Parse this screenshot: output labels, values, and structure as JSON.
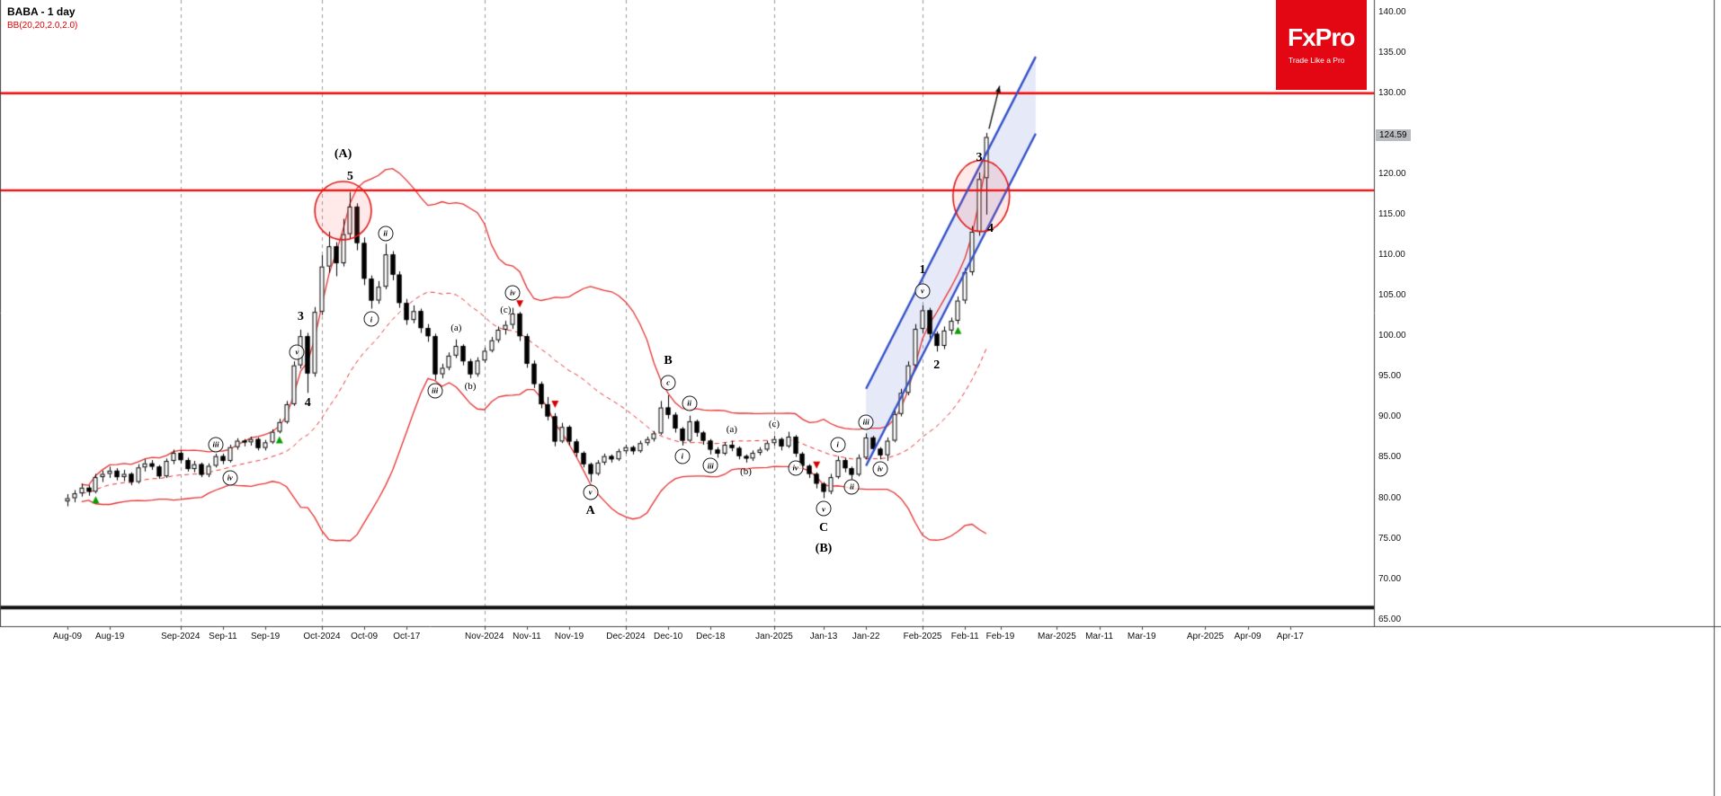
{
  "header": {
    "symbol_title": "BABA - 1 day",
    "indicator_label": "BB(20,20,2.0,2.0)"
  },
  "logo": {
    "brand": "FxPro",
    "tagline": "Trade Like a Pro",
    "bg_color": "#e30613"
  },
  "price_axis": {
    "current_price_label": "124.59",
    "ticks": [
      {
        "label": "140.00",
        "value": 140
      },
      {
        "label": "135.00",
        "value": 135
      },
      {
        "label": "130.00",
        "value": 130
      },
      {
        "label": "125.00",
        "value": 125
      },
      {
        "label": "120.00",
        "value": 120
      },
      {
        "label": "115.00",
        "value": 115
      },
      {
        "label": "110.00",
        "value": 110
      },
      {
        "label": "105.00",
        "value": 105
      },
      {
        "label": "100.00",
        "value": 100
      },
      {
        "label": "95.00",
        "value": 95
      },
      {
        "label": "90.00",
        "value": 90
      },
      {
        "label": "85.00",
        "value": 85
      },
      {
        "label": "80.00",
        "value": 80
      },
      {
        "label": "75.00",
        "value": 75
      },
      {
        "label": "70.00",
        "value": 70
      },
      {
        "label": "65.00",
        "value": 65
      }
    ]
  },
  "chart_data": {
    "type": "candlestick",
    "symbol": "BABA",
    "timeframe": "1 day",
    "title": "BABA - 1 day",
    "indicator": {
      "name": "Bollinger Bands",
      "label": "BB(20,20,2.0,2.0)",
      "period": 20,
      "deviation": 2.0
    },
    "price_range": [
      64.2,
      141.5
    ],
    "current_price": 124.59,
    "x_labels": [
      {
        "label": "Aug-09",
        "day": 0
      },
      {
        "label": "Aug-19",
        "day": 6
      },
      {
        "label": "Sep-2024",
        "day": 16
      },
      {
        "label": "Sep-11",
        "day": 22
      },
      {
        "label": "Sep-19",
        "day": 28
      },
      {
        "label": "Oct-2024",
        "day": 36
      },
      {
        "label": "Oct-09",
        "day": 42
      },
      {
        "label": "Oct-17",
        "day": 48
      },
      {
        "label": "Nov-2024",
        "day": 59
      },
      {
        "label": "Nov-11",
        "day": 65
      },
      {
        "label": "Nov-19",
        "day": 71
      },
      {
        "label": "Dec-2024",
        "day": 79
      },
      {
        "label": "Dec-10",
        "day": 85
      },
      {
        "label": "Dec-18",
        "day": 91
      },
      {
        "label": "Jan-2025",
        "day": 100
      },
      {
        "label": "Jan-13",
        "day": 107
      },
      {
        "label": "Jan-22",
        "day": 113
      },
      {
        "label": "Feb-2025",
        "day": 121
      },
      {
        "label": "Feb-11",
        "day": 127
      },
      {
        "label": "Feb-19",
        "day": 132
      },
      {
        "label": "Mar-2025",
        "day": 140
      },
      {
        "label": "Mar-11",
        "day": 146
      },
      {
        "label": "Mar-19",
        "day": 152
      },
      {
        "label": "Apr-2025",
        "day": 161
      },
      {
        "label": "Apr-09",
        "day": 167
      },
      {
        "label": "Apr-17",
        "day": 173
      }
    ],
    "month_gridline_days": [
      16,
      36,
      59,
      79,
      100,
      121
    ],
    "candles": [
      [
        79.6,
        80.5,
        79.0,
        80.0
      ],
      [
        80.0,
        81.0,
        79.5,
        80.6
      ],
      [
        80.6,
        81.8,
        80.2,
        81.3
      ],
      [
        81.3,
        81.6,
        80.3,
        80.8
      ],
      [
        80.8,
        83.0,
        80.6,
        82.6
      ],
      [
        82.6,
        83.4,
        82.0,
        83.0
      ],
      [
        83.0,
        83.9,
        82.5,
        83.4
      ],
      [
        83.4,
        83.7,
        82.2,
        82.6
      ],
      [
        82.6,
        83.5,
        82.1,
        83.0
      ],
      [
        83.0,
        83.2,
        81.6,
        82.0
      ],
      [
        82.0,
        84.2,
        81.8,
        83.8
      ],
      [
        83.8,
        84.8,
        83.3,
        84.3
      ],
      [
        84.3,
        84.7,
        83.5,
        83.9
      ],
      [
        83.9,
        84.1,
        82.4,
        82.7
      ],
      [
        82.7,
        84.9,
        82.5,
        84.6
      ],
      [
        84.6,
        86.0,
        84.2,
        85.6
      ],
      [
        85.6,
        85.9,
        84.3,
        84.7
      ],
      [
        84.7,
        85.0,
        83.3,
        83.6
      ],
      [
        83.6,
        84.6,
        83.2,
        84.2
      ],
      [
        84.2,
        84.4,
        82.6,
        82.9
      ],
      [
        82.9,
        84.3,
        82.6,
        84.0
      ],
      [
        84.0,
        85.5,
        83.8,
        85.2
      ],
      [
        85.2,
        85.5,
        84.2,
        84.6
      ],
      [
        84.6,
        86.6,
        84.4,
        86.3
      ],
      [
        86.3,
        87.4,
        86.0,
        87.1
      ],
      [
        87.1,
        87.3,
        86.4,
        86.9
      ],
      [
        86.9,
        87.6,
        86.5,
        87.3
      ],
      [
        87.3,
        87.5,
        85.9,
        86.2
      ],
      [
        86.2,
        87.2,
        85.9,
        86.9
      ],
      [
        86.9,
        88.5,
        86.7,
        88.2
      ],
      [
        88.2,
        89.8,
        88.0,
        89.4
      ],
      [
        89.4,
        92.0,
        89.2,
        91.6
      ],
      [
        91.6,
        96.9,
        91.4,
        96.4
      ],
      [
        96.4,
        100.8,
        96.0,
        100.0
      ],
      [
        100.0,
        100.4,
        93.0,
        95.4
      ],
      [
        95.4,
        103.6,
        95.0,
        103.0
      ],
      [
        103.0,
        110.0,
        102.6,
        108.6
      ],
      [
        108.6,
        112.9,
        107.8,
        111.1
      ],
      [
        111.1,
        111.6,
        107.4,
        109.0
      ],
      [
        109.0,
        114.5,
        108.6,
        112.6
      ],
      [
        112.6,
        117.8,
        112.0,
        116.0
      ],
      [
        116.0,
        116.4,
        110.6,
        111.5
      ],
      [
        111.5,
        112.2,
        106.3,
        107.1
      ],
      [
        107.1,
        107.5,
        103.4,
        104.4
      ],
      [
        104.4,
        106.8,
        104.0,
        106.1
      ],
      [
        106.1,
        111.4,
        105.8,
        110.1
      ],
      [
        110.1,
        110.5,
        106.9,
        107.6
      ],
      [
        107.6,
        108.0,
        103.5,
        104.1
      ],
      [
        104.1,
        104.6,
        101.4,
        102.0
      ],
      [
        102.0,
        103.8,
        101.6,
        103.1
      ],
      [
        103.1,
        103.4,
        100.4,
        101.0
      ],
      [
        101.0,
        101.5,
        99.3,
        100.0
      ],
      [
        100.0,
        100.3,
        94.6,
        95.3
      ],
      [
        95.3,
        96.6,
        94.8,
        96.1
      ],
      [
        96.1,
        98.0,
        95.8,
        97.6
      ],
      [
        97.6,
        99.6,
        97.3,
        98.8
      ],
      [
        98.8,
        99.0,
        96.4,
        96.9
      ],
      [
        96.9,
        97.2,
        94.8,
        95.3
      ],
      [
        95.3,
        97.4,
        95.0,
        97.0
      ],
      [
        97.0,
        98.6,
        96.7,
        98.2
      ],
      [
        98.2,
        99.9,
        98.0,
        99.5
      ],
      [
        99.5,
        101.2,
        99.2,
        100.8
      ],
      [
        100.8,
        101.9,
        100.2,
        101.4
      ],
      [
        101.4,
        103.5,
        100.9,
        102.8
      ],
      [
        102.8,
        103.0,
        99.4,
        100.0
      ],
      [
        100.0,
        100.3,
        96.1,
        96.6
      ],
      [
        96.6,
        97.0,
        93.6,
        94.1
      ],
      [
        94.1,
        94.4,
        91.1,
        91.6
      ],
      [
        91.6,
        92.5,
        89.6,
        90.1
      ],
      [
        90.1,
        90.5,
        86.4,
        87.0
      ],
      [
        87.0,
        89.3,
        86.8,
        88.8
      ],
      [
        88.8,
        89.0,
        86.5,
        87.0
      ],
      [
        87.0,
        87.3,
        85.1,
        85.6
      ],
      [
        85.6,
        85.8,
        83.8,
        84.2
      ],
      [
        84.2,
        84.4,
        82.0,
        83.0
      ],
      [
        83.0,
        84.7,
        82.8,
        84.4
      ],
      [
        84.4,
        85.5,
        84.1,
        85.2
      ],
      [
        85.2,
        85.4,
        84.4,
        84.8
      ],
      [
        84.8,
        86.1,
        84.6,
        85.8
      ],
      [
        85.8,
        86.6,
        85.5,
        86.3
      ],
      [
        86.3,
        86.5,
        85.4,
        85.8
      ],
      [
        85.8,
        87.1,
        85.6,
        86.8
      ],
      [
        86.8,
        87.6,
        86.5,
        87.3
      ],
      [
        87.3,
        88.3,
        87.0,
        88.0
      ],
      [
        88.0,
        92.0,
        87.8,
        91.2
      ],
      [
        91.2,
        92.7,
        89.8,
        90.3
      ],
      [
        90.3,
        90.6,
        88.1,
        88.6
      ],
      [
        88.6,
        88.8,
        86.5,
        87.1
      ],
      [
        87.1,
        90.2,
        86.9,
        89.5
      ],
      [
        89.5,
        89.7,
        87.6,
        88.1
      ],
      [
        88.1,
        88.3,
        86.6,
        87.1
      ],
      [
        87.1,
        87.3,
        85.4,
        86.0
      ],
      [
        86.0,
        86.3,
        85.0,
        85.5
      ],
      [
        85.5,
        86.9,
        85.3,
        86.6
      ],
      [
        86.6,
        87.1,
        85.8,
        86.2
      ],
      [
        86.2,
        86.4,
        84.8,
        85.2
      ],
      [
        85.2,
        85.4,
        84.4,
        84.9
      ],
      [
        84.9,
        85.9,
        84.6,
        85.6
      ],
      [
        85.6,
        86.3,
        85.3,
        86.0
      ],
      [
        86.0,
        87.1,
        85.8,
        86.8
      ],
      [
        86.8,
        87.7,
        86.5,
        87.3
      ],
      [
        87.3,
        87.5,
        85.9,
        86.4
      ],
      [
        86.4,
        88.2,
        86.2,
        87.6
      ],
      [
        87.6,
        87.8,
        85.1,
        85.5
      ],
      [
        85.5,
        85.7,
        83.6,
        84.0
      ],
      [
        84.0,
        84.2,
        82.5,
        83.0
      ],
      [
        83.0,
        83.2,
        81.2,
        81.8
      ],
      [
        81.8,
        82.0,
        80.0,
        80.8
      ],
      [
        80.8,
        83.0,
        80.5,
        82.6
      ],
      [
        82.6,
        85.2,
        82.4,
        84.7
      ],
      [
        84.7,
        85.0,
        83.2,
        83.7
      ],
      [
        83.7,
        83.9,
        82.3,
        82.9
      ],
      [
        82.9,
        85.4,
        82.7,
        85.0
      ],
      [
        85.0,
        88.0,
        84.8,
        87.5
      ],
      [
        87.5,
        87.7,
        85.6,
        86.1
      ],
      [
        86.1,
        86.3,
        84.8,
        85.3
      ],
      [
        85.3,
        87.5,
        84.6,
        87.1
      ],
      [
        87.1,
        90.9,
        86.9,
        90.4
      ],
      [
        90.4,
        93.5,
        90.1,
        93.0
      ],
      [
        93.0,
        96.9,
        92.7,
        96.4
      ],
      [
        96.4,
        101.5,
        96.1,
        100.9
      ],
      [
        100.9,
        103.8,
        100.4,
        103.2
      ],
      [
        103.2,
        103.5,
        99.6,
        100.3
      ],
      [
        100.3,
        100.6,
        98.1,
        98.8
      ],
      [
        98.8,
        101.2,
        98.4,
        100.7
      ],
      [
        100.7,
        102.3,
        100.2,
        101.9
      ],
      [
        101.9,
        104.9,
        101.5,
        104.4
      ],
      [
        104.4,
        108.4,
        104.0,
        107.9
      ],
      [
        107.9,
        113.6,
        107.5,
        112.9
      ],
      [
        112.9,
        120.2,
        112.4,
        119.4
      ],
      [
        119.5,
        125.1,
        115.0,
        124.59
      ]
    ],
    "horizontal_lines": [
      {
        "price": 130.0,
        "color": "#ff0000",
        "width": 2.4
      },
      {
        "price": 118.0,
        "color": "#ff0000",
        "width": 2.4
      },
      {
        "price": 66.5,
        "color": "#111111",
        "width": 4
      }
    ],
    "channel": {
      "d1": 113,
      "upper1": 93.5,
      "lower1": 84.0,
      "d2": 137,
      "upper2": 134.5,
      "lower2": 125.0
    },
    "ellipses": [
      {
        "day": 39,
        "price": 115.5,
        "rx_days": 4.0,
        "ry_price": 3.6
      },
      {
        "day": 129.3,
        "price": 117.3,
        "rx_days": 4.0,
        "ry_price": 4.4
      }
    ],
    "markers": {
      "up": [
        [
          4,
          79.7
        ],
        [
          30,
          87.1
        ],
        [
          126,
          100.6
        ]
      ],
      "down": [
        [
          64,
          104.1
        ],
        [
          69,
          91.7
        ],
        [
          106,
          84.2
        ]
      ]
    },
    "arrow": {
      "from": [
        130.4,
        125.6
      ],
      "to": [
        131.9,
        130.9
      ]
    },
    "wave_labels": [
      {
        "day": 21,
        "price": 86.6,
        "text": "iii",
        "kind": "circ"
      },
      {
        "day": 23,
        "price": 82.5,
        "text": "iv",
        "kind": "circ"
      },
      {
        "day": 33,
        "price": 102.3,
        "text": "3",
        "kind": "big"
      },
      {
        "day": 32.5,
        "price": 98.0,
        "text": "v",
        "kind": "circ"
      },
      {
        "day": 34,
        "price": 91.7,
        "text": "4",
        "kind": "big"
      },
      {
        "day": 40,
        "price": 119.7,
        "text": "5",
        "kind": "big"
      },
      {
        "day": 39,
        "price": 122.4,
        "text": "(A)",
        "kind": "big"
      },
      {
        "day": 43,
        "price": 102.1,
        "text": "i",
        "kind": "circ"
      },
      {
        "day": 45,
        "price": 112.7,
        "text": "ii",
        "kind": "circ"
      },
      {
        "day": 52,
        "price": 93.3,
        "text": "iii",
        "kind": "circ"
      },
      {
        "day": 55,
        "price": 101.0,
        "text": "(a)",
        "kind": "small"
      },
      {
        "day": 57,
        "price": 93.8,
        "text": "(b)",
        "kind": "small"
      },
      {
        "day": 62,
        "price": 103.2,
        "text": "(c)",
        "kind": "small"
      },
      {
        "day": 63,
        "price": 105.4,
        "text": "iv",
        "kind": "circ"
      },
      {
        "day": 74,
        "price": 80.7,
        "text": "v",
        "kind": "circ"
      },
      {
        "day": 74,
        "price": 78.4,
        "text": "A",
        "kind": "big"
      },
      {
        "day": 85,
        "price": 96.9,
        "text": "B",
        "kind": "big"
      },
      {
        "day": 85,
        "price": 94.3,
        "text": "c",
        "kind": "circ"
      },
      {
        "day": 87,
        "price": 85.2,
        "text": "i",
        "kind": "circ"
      },
      {
        "day": 88,
        "price": 91.7,
        "text": "ii",
        "kind": "circ"
      },
      {
        "day": 91,
        "price": 84.0,
        "text": "iii",
        "kind": "circ"
      },
      {
        "day": 94,
        "price": 88.5,
        "text": "(a)",
        "kind": "small"
      },
      {
        "day": 96,
        "price": 83.3,
        "text": "(b)",
        "kind": "small"
      },
      {
        "day": 100,
        "price": 89.1,
        "text": "(c)",
        "kind": "small"
      },
      {
        "day": 103,
        "price": 83.7,
        "text": "iv",
        "kind": "circ"
      },
      {
        "day": 107,
        "price": 78.7,
        "text": "v",
        "kind": "circ"
      },
      {
        "day": 107,
        "price": 76.3,
        "text": "C",
        "kind": "big"
      },
      {
        "day": 107,
        "price": 73.7,
        "text": "(B)",
        "kind": "big"
      },
      {
        "day": 109,
        "price": 86.6,
        "text": "i",
        "kind": "circ"
      },
      {
        "day": 111,
        "price": 81.4,
        "text": "ii",
        "kind": "circ"
      },
      {
        "day": 113,
        "price": 89.4,
        "text": "iii",
        "kind": "circ"
      },
      {
        "day": 115,
        "price": 83.6,
        "text": "iv",
        "kind": "circ"
      },
      {
        "day": 121,
        "price": 105.6,
        "text": "v",
        "kind": "circ"
      },
      {
        "day": 121,
        "price": 108.1,
        "text": "1",
        "kind": "big"
      },
      {
        "day": 123,
        "price": 96.4,
        "text": "2",
        "kind": "big"
      },
      {
        "day": 129,
        "price": 122.0,
        "text": "3",
        "kind": "big"
      },
      {
        "day": 130.6,
        "price": 113.2,
        "text": "4",
        "kind": "big"
      }
    ],
    "colors": {
      "up": "#ffffff",
      "down": "#000000",
      "wick": "#000000",
      "band": "#e53030",
      "grid": "#9a9a9a",
      "channel": "#3350c8",
      "channel_fill": "rgba(100,120,210,0.16)",
      "ellipse": "#e01818",
      "ellipse_fill": "rgba(255,70,70,0.12)",
      "marker_up": "#0a9e00",
      "marker_down": "#d40000",
      "arrow": "#111111"
    }
  }
}
